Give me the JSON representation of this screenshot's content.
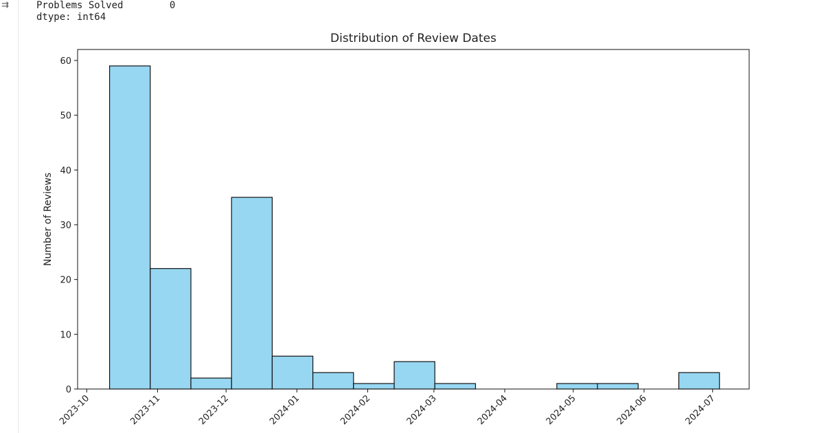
{
  "output": {
    "icon": "output-toggle-icon",
    "line1_label": "Problems Solved",
    "line1_value": "0",
    "line2": "dtype: int64"
  },
  "chart_data": {
    "type": "bar",
    "title": "Distribution of Review Dates",
    "xlabel": "",
    "ylabel": "Number of Reviews",
    "bin_start": "2023-10-11",
    "bin_end": "2024-07-04",
    "values": [
      59,
      22,
      2,
      35,
      6,
      3,
      1,
      5,
      1,
      0,
      0,
      1,
      1,
      0,
      3
    ],
    "xlim": [
      "2023-09-27",
      "2024-07-17"
    ],
    "ylim": [
      0,
      62
    ],
    "xticks": [
      "2023-10",
      "2023-11",
      "2023-12",
      "2024-01",
      "2024-02",
      "2024-03",
      "2024-04",
      "2024-05",
      "2024-06",
      "2024-07"
    ],
    "yticks": [
      0,
      10,
      20,
      30,
      40,
      50,
      60
    ],
    "bar_color": "#97d7f2",
    "edge_color": "#111111",
    "grid": false
  }
}
